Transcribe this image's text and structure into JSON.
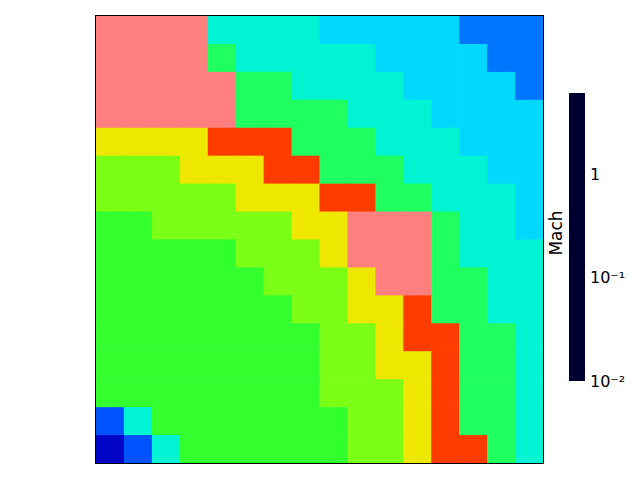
{
  "chart_data": {
    "type": "heatmap",
    "colorbar_label": "Mach",
    "log": true,
    "tick_labels": false,
    "cells": [
      [
        3,
        3,
        3,
        3,
        0.15,
        0.15,
        0.15,
        0.15,
        0.1,
        0.1,
        0.1,
        0.1,
        0.1,
        0.06,
        0.06,
        0.06
      ],
      [
        3,
        3,
        3,
        3,
        0.25,
        0.15,
        0.15,
        0.15,
        0.15,
        0.15,
        0.1,
        0.1,
        0.1,
        0.1,
        0.06,
        0.06
      ],
      [
        3,
        3,
        3,
        3,
        3,
        0.25,
        0.25,
        0.15,
        0.15,
        0.15,
        0.15,
        0.1,
        0.1,
        0.1,
        0.1,
        0.06
      ],
      [
        3,
        3,
        3,
        3,
        3,
        0.25,
        0.25,
        0.25,
        0.25,
        0.15,
        0.15,
        0.15,
        0.1,
        0.1,
        0.1,
        0.1
      ],
      [
        0.7,
        0.7,
        0.7,
        0.7,
        1.5,
        1.5,
        1.5,
        0.25,
        0.25,
        0.25,
        0.15,
        0.15,
        0.15,
        0.1,
        0.1,
        0.1
      ],
      [
        0.4,
        0.4,
        0.4,
        0.7,
        0.7,
        0.7,
        1.5,
        1.5,
        0.25,
        0.25,
        0.25,
        0.15,
        0.15,
        0.15,
        0.1,
        0.1
      ],
      [
        0.4,
        0.4,
        0.4,
        0.4,
        0.4,
        0.7,
        0.7,
        0.7,
        1.5,
        1.5,
        0.25,
        0.25,
        0.15,
        0.15,
        0.15,
        0.1
      ],
      [
        0.3,
        0.3,
        0.4,
        0.4,
        0.4,
        0.4,
        0.4,
        0.7,
        0.7,
        3,
        3,
        3,
        0.25,
        0.15,
        0.15,
        0.1
      ],
      [
        0.3,
        0.3,
        0.3,
        0.3,
        0.3,
        0.4,
        0.4,
        0.4,
        0.7,
        3,
        3,
        3,
        0.25,
        0.15,
        0.15,
        0.15
      ],
      [
        0.3,
        0.3,
        0.3,
        0.3,
        0.3,
        0.3,
        0.4,
        0.4,
        0.4,
        0.7,
        3,
        3,
        0.25,
        0.25,
        0.15,
        0.15
      ],
      [
        0.3,
        0.3,
        0.3,
        0.3,
        0.3,
        0.3,
        0.3,
        0.4,
        0.4,
        0.7,
        0.7,
        1.5,
        0.25,
        0.25,
        0.15,
        0.15
      ],
      [
        0.3,
        0.3,
        0.3,
        0.3,
        0.3,
        0.3,
        0.3,
        0.3,
        0.4,
        0.4,
        0.7,
        1.5,
        1.5,
        0.25,
        0.25,
        0.15
      ],
      [
        0.3,
        0.3,
        0.3,
        0.3,
        0.3,
        0.3,
        0.3,
        0.3,
        0.4,
        0.4,
        0.7,
        0.7,
        1.5,
        0.25,
        0.25,
        0.15
      ],
      [
        0.3,
        0.3,
        0.3,
        0.3,
        0.3,
        0.3,
        0.3,
        0.3,
        0.4,
        0.4,
        0.4,
        0.7,
        1.5,
        0.25,
        0.25,
        0.15
      ],
      [
        0.05,
        0.15,
        0.3,
        0.3,
        0.3,
        0.3,
        0.3,
        0.3,
        0.3,
        0.4,
        0.4,
        0.7,
        1.5,
        0.25,
        0.25,
        0.15
      ],
      [
        0.02,
        0.05,
        0.15,
        0.3,
        0.3,
        0.3,
        0.3,
        0.3,
        0.3,
        0.4,
        0.4,
        0.7,
        1.5,
        1.5,
        0.25,
        0.15
      ]
    ],
    "colorbar_range": [
      0.01,
      6
    ],
    "colorbar_ticks": [
      {
        "value": 0.01,
        "label": "10⁻²"
      },
      {
        "value": 0.1,
        "label": "10⁻¹"
      },
      {
        "value": 1,
        "label": "1"
      }
    ]
  }
}
